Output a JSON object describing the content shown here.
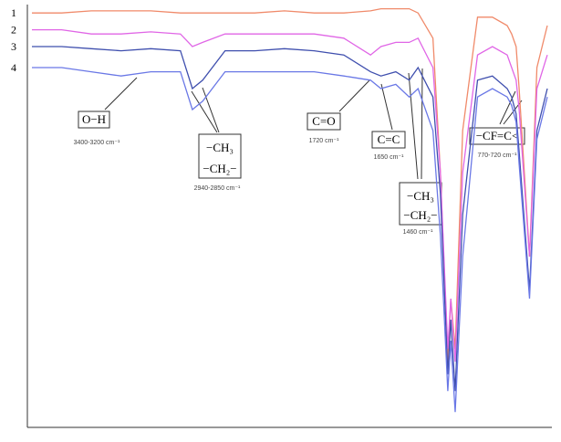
{
  "chart_data": {
    "type": "line",
    "x": [
      4000,
      3800,
      3600,
      3400,
      3200,
      3000,
      2920,
      2850,
      2700,
      2500,
      2300,
      2100,
      1900,
      1720,
      1650,
      1550,
      1460,
      1400,
      1300,
      1250,
      1200,
      1180,
      1150,
      1100,
      1000,
      900,
      800,
      770,
      740,
      720,
      650,
      600,
      530
    ],
    "xlim": [
      4000,
      530
    ],
    "ylim": [
      0,
      100
    ],
    "series": [
      {
        "name": "1",
        "color": "#f08a6a",
        "values": [
          98,
          98,
          98.5,
          98.5,
          98.5,
          98,
          98,
          98,
          98,
          98,
          98.5,
          98,
          98,
          98.5,
          99,
          99,
          99,
          98,
          92,
          60,
          15,
          30,
          18,
          70,
          97,
          97,
          95,
          93,
          90,
          80,
          40,
          85,
          95
        ]
      },
      {
        "name": "2",
        "color": "#e066e6",
        "values": [
          94,
          94,
          93,
          93,
          93.5,
          93,
          90,
          91,
          93,
          93,
          93,
          93,
          92,
          88,
          90,
          91,
          91,
          92,
          85,
          60,
          18,
          30,
          15,
          60,
          88,
          90,
          88,
          85,
          82,
          75,
          40,
          80,
          88
        ]
      },
      {
        "name": "3",
        "color": "#3f4fae",
        "values": [
          90,
          90,
          89.5,
          89,
          89.5,
          89,
          80,
          82,
          89,
          89,
          89.5,
          89,
          88,
          84,
          83,
          84,
          82,
          85,
          78,
          55,
          12,
          25,
          8,
          50,
          82,
          83,
          80,
          78,
          74,
          65,
          32,
          70,
          80
        ]
      },
      {
        "name": "4",
        "color": "#6a78e6",
        "values": [
          85,
          85,
          84,
          83,
          84,
          84,
          75,
          77,
          84,
          84,
          84,
          84,
          83,
          82,
          80,
          81,
          78,
          80,
          70,
          45,
          8,
          20,
          3,
          40,
          78,
          80,
          78,
          76,
          72,
          62,
          30,
          68,
          78
        ]
      }
    ],
    "annotations": [
      {
        "labels": [
          "O−H"
        ],
        "note": "3400-3200 cm⁻¹"
      },
      {
        "labels": [
          "−CH₃",
          "−CH₂−"
        ],
        "note": "2940-2850 cm⁻¹"
      },
      {
        "labels": [
          "C=O"
        ],
        "note": "1720 cm⁻¹"
      },
      {
        "labels": [
          "C=C"
        ],
        "note": "1650 cm⁻¹"
      },
      {
        "labels": [
          "−CH₃",
          "−CH₂−"
        ],
        "note": "1460 cm⁻¹"
      },
      {
        "labels": [
          "−CF=C<"
        ],
        "note": "770-720 cm⁻¹"
      }
    ]
  }
}
